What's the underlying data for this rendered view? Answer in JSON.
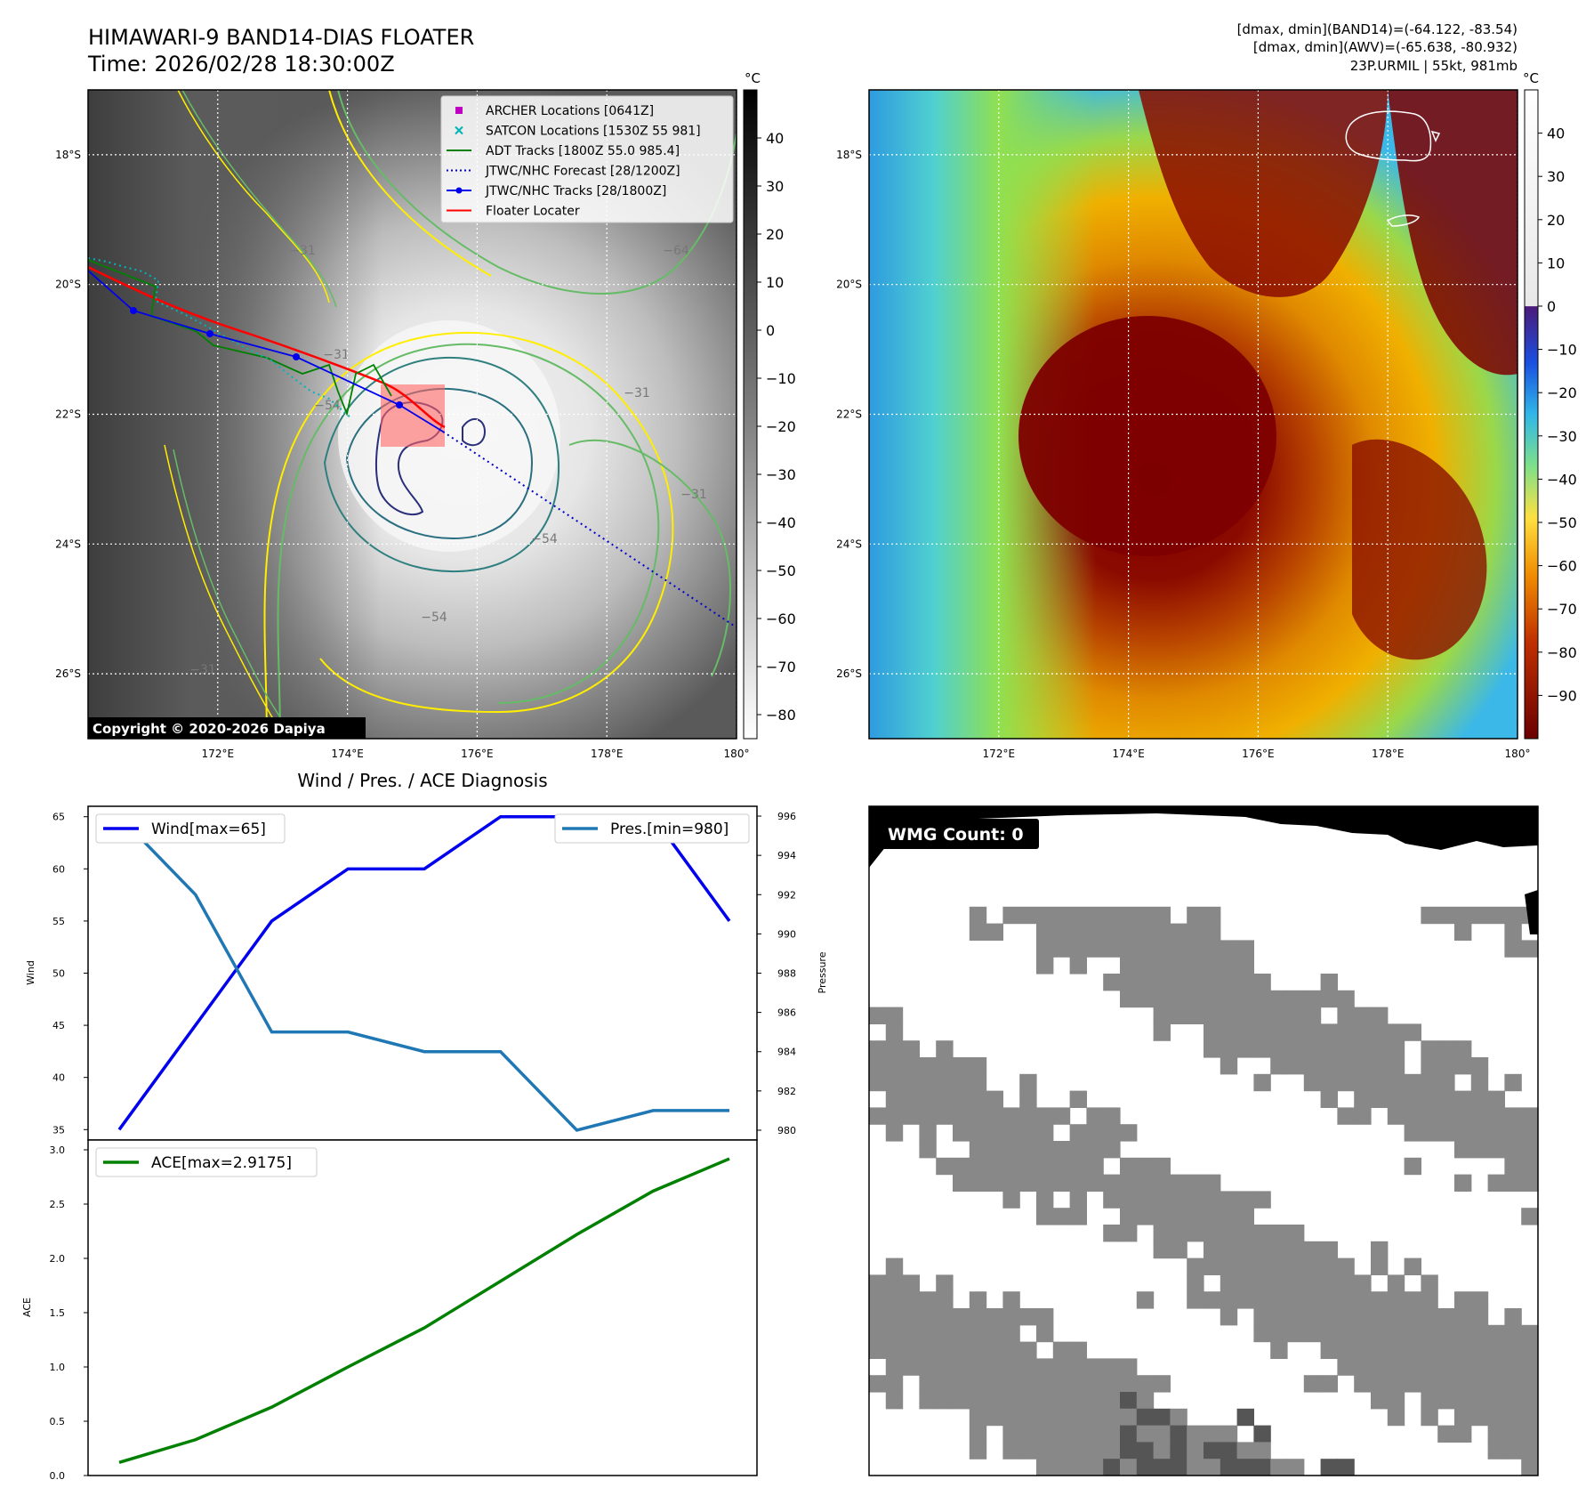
{
  "header": {
    "title_line1": "HIMAWARI-9 BAND14-DIAS FLOATER",
    "title_line2": "Time: 2026/02/28 18:30:00Z",
    "info_line1": "[dmax, dmin](BAND14)=(-64.122, -83.54)",
    "info_line2": "[dmax, dmin](AWV)=(-65.638, -80.932)",
    "info_line3": "23P.URMIL | 55kt, 981mb"
  },
  "map_axes": {
    "lat_labels": [
      "18°S",
      "20°S",
      "22°S",
      "24°S",
      "26°S"
    ],
    "lon_labels": [
      "172°E",
      "174°E",
      "176°E",
      "178°E",
      "180°"
    ],
    "lat_values": [
      -18,
      -20,
      -22,
      -24,
      -26
    ],
    "lon_values": [
      172,
      174,
      176,
      178,
      180
    ],
    "lat_range": [
      -27.0,
      -17.0
    ],
    "lon_range": [
      170.0,
      180.0
    ]
  },
  "ir_panel": {
    "copyright": "Copyright © 2020-2026 Dapiya",
    "colorbar_unit": "°C",
    "colorbar_ticks": [
      "40",
      "30",
      "20",
      "10",
      "0",
      "−10",
      "−20",
      "−30",
      "−40",
      "−50",
      "−60",
      "−70",
      "−80"
    ],
    "colorbar_values": [
      40,
      30,
      20,
      10,
      0,
      -10,
      -20,
      -30,
      -40,
      -50,
      -60,
      -70,
      -80
    ],
    "colorbar_range": [
      -85,
      50
    ],
    "contour_labels": [
      "−31",
      "−31",
      "−54",
      "−31",
      "−54",
      "−64",
      "−31",
      "−54",
      "−31"
    ],
    "legend": [
      {
        "label": "ARCHER Locations [0641Z]",
        "color": "#c000c0",
        "marker": "square"
      },
      {
        "label": "SATCON Locations [1530Z 55 981]",
        "color": "#00b5b5",
        "marker": "x"
      },
      {
        "label": "ADT Tracks [1800Z 55.0 985.4]",
        "color": "#008000",
        "marker": "line"
      },
      {
        "label": "JTWC/NHC Forecast [28/1200Z]",
        "color": "#0000cc",
        "marker": "dotted"
      },
      {
        "label": "JTWC/NHC Tracks [28/1800Z]",
        "color": "#0000ee",
        "marker": "line-dot"
      },
      {
        "label": "Floater Locater",
        "color": "#ff0000",
        "marker": "line"
      }
    ]
  },
  "awv_panel": {
    "colorbar_unit": "°C",
    "colorbar_ticks": [
      "40",
      "30",
      "20",
      "10",
      "0",
      "−10",
      "−20",
      "−30",
      "−40",
      "−50",
      "−60",
      "−70",
      "−80",
      "−90"
    ],
    "colorbar_values": [
      40,
      30,
      20,
      10,
      0,
      -10,
      -20,
      -30,
      -40,
      -50,
      -60,
      -70,
      -80,
      -90
    ],
    "colorbar_range": [
      -100,
      50
    ]
  },
  "wmg_panel": {
    "label": "WMG Count: 0"
  },
  "chart_data": [
    {
      "type": "line",
      "title": "Wind / Pres. / ACE Diagnosis",
      "ylabel": "Wind",
      "y2label": "Pressure",
      "x": [
        0,
        1,
        2,
        3,
        4,
        5,
        6,
        7,
        8
      ],
      "ylim": [
        34.0,
        66.0
      ],
      "y2lim": [
        979.5,
        996.5
      ],
      "yticks": [
        35,
        40,
        45,
        50,
        55,
        60,
        65
      ],
      "y2ticks": [
        980,
        982,
        984,
        986,
        988,
        990,
        992,
        994,
        996
      ],
      "series": [
        {
          "name": "Wind[max=65]",
          "axis": "left",
          "color": "#0000ee",
          "values": [
            35,
            45,
            55,
            60,
            60,
            65,
            65,
            65,
            55
          ]
        },
        {
          "name": "Pres.[min=980]",
          "axis": "right",
          "color": "#1f77b4",
          "values": [
            996,
            992,
            985,
            985,
            984,
            984,
            980,
            981,
            981
          ]
        }
      ]
    },
    {
      "type": "line",
      "ylabel": "ACE",
      "x": [
        0,
        1,
        2,
        3,
        4,
        5,
        6,
        7,
        8
      ],
      "ylim": [
        0.0,
        3.0
      ],
      "yticks": [
        0.0,
        0.5,
        1.0,
        1.5,
        2.0,
        2.5,
        3.0
      ],
      "ytick_labels": [
        "0.0",
        "0.5",
        "1.0",
        "1.5",
        "2.0",
        "2.5",
        "3.0"
      ],
      "series": [
        {
          "name": "ACE[max=2.9175]",
          "axis": "left",
          "color": "#008000",
          "values": [
            0.12,
            0.33,
            0.63,
            1.0,
            1.36,
            1.79,
            2.22,
            2.62,
            2.9175
          ]
        }
      ]
    }
  ],
  "colors": {
    "ir_track_red": "#ff0000",
    "contour_yellow": "#ffee00",
    "contour_green": "#66bb66",
    "contour_navy": "#2a2f7a"
  }
}
